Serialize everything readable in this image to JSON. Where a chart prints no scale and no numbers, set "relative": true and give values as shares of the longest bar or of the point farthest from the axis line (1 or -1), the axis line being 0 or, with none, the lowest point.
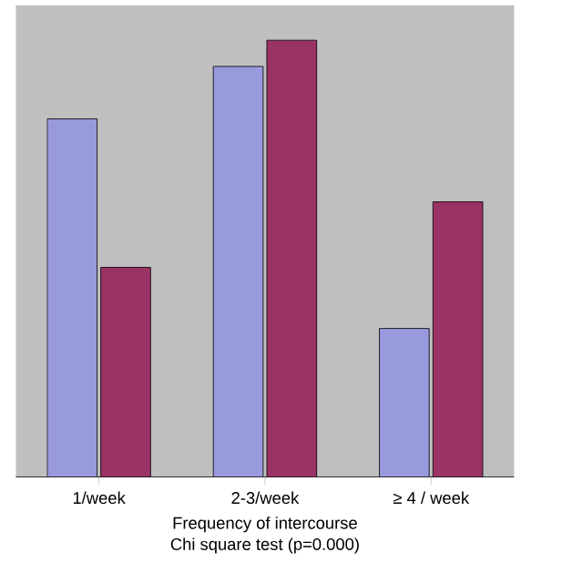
{
  "chart_data": {
    "type": "bar",
    "relative": true,
    "categories": [
      "1/week",
      "2-3/week",
      "≥ 4 / week"
    ],
    "series": [
      {
        "color": "#9999dd",
        "values": [
          0.82,
          0.94,
          0.34
        ]
      },
      {
        "color": "#993366",
        "values": [
          0.48,
          1,
          0.63
        ]
      }
    ],
    "xlabel": "Frequency of intercourse",
    "annotations": [
      "Chi square test (p=0.000)"
    ]
  }
}
